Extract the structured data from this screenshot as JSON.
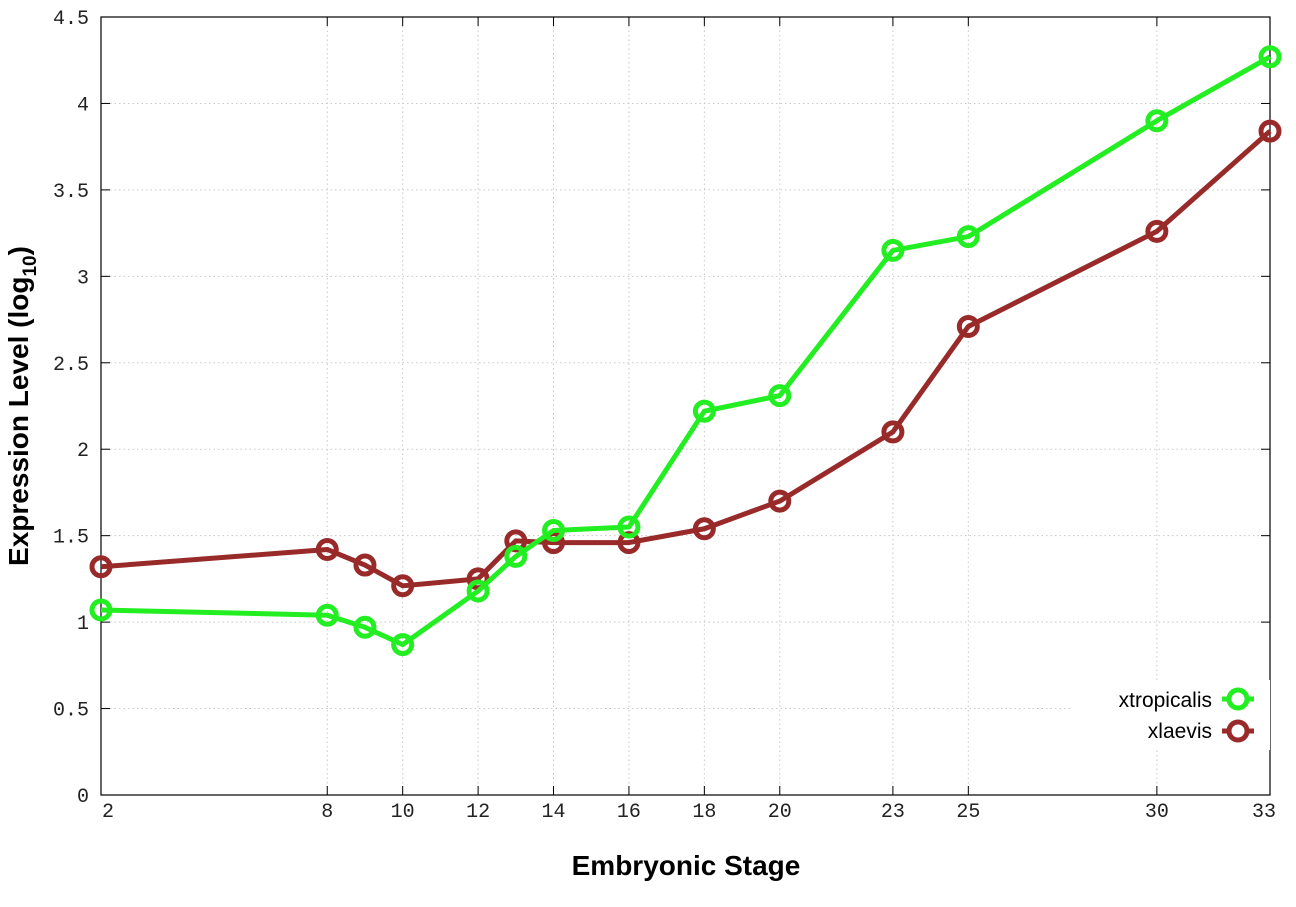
{
  "chart_data": {
    "type": "line",
    "xlabel": "Embryonic Stage",
    "ylabel_main": "Expression Level (log",
    "ylabel_sub": "10",
    "ylabel_close": ")",
    "x": [
      2,
      8,
      9,
      10,
      12,
      13,
      14,
      16,
      18,
      20,
      23,
      25,
      30,
      33
    ],
    "x_ticks": [
      "2",
      "8",
      "10",
      "12",
      "14",
      "16",
      "18",
      "20",
      "23",
      "25",
      "30",
      "33"
    ],
    "y_ticks": [
      "0",
      "0.5",
      "1",
      "1.5",
      "2",
      "2.5",
      "3",
      "3.5",
      "4",
      "4.5"
    ],
    "xlim": [
      2,
      33
    ],
    "ylim": [
      0,
      4.5
    ],
    "grid": true,
    "legend_position": "bottom-right",
    "series": [
      {
        "name": "xtropicalis",
        "color": "#22ee22",
        "values": [
          1.07,
          1.04,
          0.97,
          0.87,
          1.18,
          1.38,
          1.53,
          1.55,
          2.22,
          2.31,
          3.15,
          3.23,
          3.9,
          4.27
        ]
      },
      {
        "name": "xlaevis",
        "color": "#992a2a",
        "values": [
          1.32,
          1.42,
          1.33,
          1.21,
          1.25,
          1.47,
          1.46,
          1.46,
          1.54,
          1.7,
          2.1,
          2.71,
          3.26,
          3.84
        ]
      }
    ]
  }
}
